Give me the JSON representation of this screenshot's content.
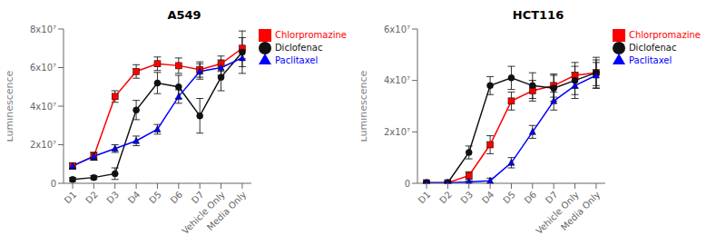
{
  "chart_data": [
    {
      "type": "line",
      "title": "A549",
      "y_label": "Luminescence",
      "categories": [
        "D1",
        "D2",
        "D3",
        "D4",
        "D5",
        "D6",
        "D7",
        "Vehicle Only",
        "Media Only"
      ],
      "series": [
        {
          "name": "Chlorpromazine",
          "color": "#ff0000",
          "marker": "square",
          "values": [
            9000000,
            14000000,
            45000000,
            58000000,
            62000000,
            61000000,
            59000000,
            62000000,
            70000000
          ],
          "errors": [
            1500000,
            2000000,
            3000000,
            3500000,
            3500000,
            4000000,
            4000000,
            4000000,
            5500000
          ]
        },
        {
          "name": "Diclofenac",
          "color": "#111111",
          "marker": "circle",
          "values": [
            2000000,
            3000000,
            5000000,
            38000000,
            52000000,
            50000000,
            35000000,
            55000000,
            68000000
          ],
          "errors": [
            1000000,
            1000000,
            3000000,
            5000000,
            5500000,
            6000000,
            9000000,
            7000000,
            11000000
          ]
        },
        {
          "name": "Paclitaxel",
          "color": "#0000ff",
          "marker": "triangle",
          "values": [
            9000000,
            14000000,
            18000000,
            22000000,
            28000000,
            45000000,
            58000000,
            60000000,
            65000000
          ],
          "errors": [
            1500000,
            2000000,
            2000000,
            2500000,
            2500000,
            3500000,
            4000000,
            4000000,
            4500000
          ]
        }
      ],
      "ylim": [
        0,
        80000000
      ],
      "yticks": [
        0,
        {
          "value": 20000000,
          "label": "2x10⁷"
        },
        {
          "value": 40000000,
          "label": "4x10⁷"
        },
        {
          "value": 60000000,
          "label": "6x10⁷"
        },
        {
          "value": 80000000,
          "label": "8x10⁷"
        }
      ],
      "grid": false,
      "legend": "right"
    },
    {
      "type": "line",
      "title": "HCT116",
      "y_label": "Luminescence",
      "categories": [
        "D1",
        "D2",
        "D3",
        "D4",
        "D5",
        "D6",
        "D7",
        "Vehicle Only",
        "Media Only"
      ],
      "series": [
        {
          "name": "Chlorpromazine",
          "color": "#ff0000",
          "marker": "square",
          "values": [
            200000,
            200000,
            3000000,
            15000000,
            32000000,
            36000000,
            38000000,
            42000000,
            43000000
          ],
          "errors": [
            200000,
            200000,
            1500000,
            3500000,
            3500000,
            4000000,
            4500000,
            5000000,
            5000000
          ]
        },
        {
          "name": "Diclofenac",
          "color": "#111111",
          "marker": "circle",
          "values": [
            200000,
            200000,
            12000000,
            38000000,
            41000000,
            38000000,
            37000000,
            40000000,
            43000000
          ],
          "errors": [
            200000,
            200000,
            2500000,
            3500000,
            4500000,
            5000000,
            5000000,
            5500000,
            6000000
          ]
        },
        {
          "name": "Paclitaxel",
          "color": "#0000ff",
          "marker": "triangle",
          "values": [
            200000,
            200000,
            500000,
            1000000,
            8000000,
            20000000,
            32000000,
            38000000,
            42000000
          ],
          "errors": [
            200000,
            200000,
            500000,
            1000000,
            2000000,
            2500000,
            3500000,
            5000000,
            5000000
          ]
        }
      ],
      "ylim": [
        0,
        60000000
      ],
      "yticks": [
        0,
        {
          "value": 20000000,
          "label": "2x10⁷"
        },
        {
          "value": 40000000,
          "label": "4x10⁷"
        },
        {
          "value": 60000000,
          "label": "6x10⁷"
        }
      ],
      "grid": false,
      "legend": "right"
    }
  ]
}
